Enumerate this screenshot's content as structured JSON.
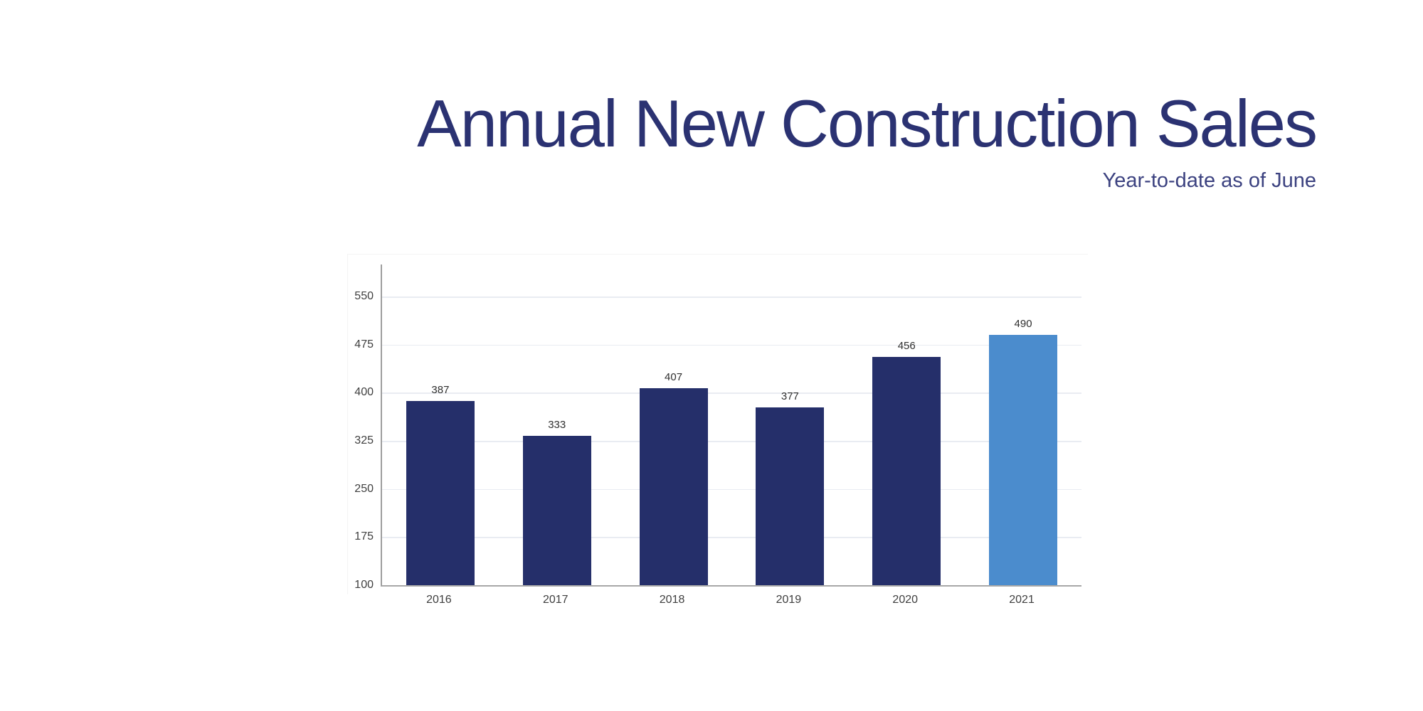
{
  "header": {
    "title": "Annual New Construction Sales",
    "subtitle": "Year-to-date as of June",
    "title_color": "#2b3272",
    "subtitle_color": "#3c4280"
  },
  "chart_data": {
    "type": "bar",
    "title": "Annual New Construction Sales",
    "subtitle": "Year-to-date as of June",
    "categories": [
      "2016",
      "2017",
      "2018",
      "2019",
      "2020",
      "2021"
    ],
    "values": [
      387,
      333,
      407,
      377,
      456,
      490
    ],
    "highlight_index": 5,
    "yticks": [
      550,
      475,
      400,
      325,
      250,
      175,
      100
    ],
    "ylim": [
      100,
      600
    ],
    "xlabel": "",
    "ylabel": "",
    "grid": true,
    "legend_position": "none",
    "colors": {
      "bar": "#252f6a",
      "highlight": "#4b8ccd",
      "gridline": "#e9ecf2",
      "axis": "#9e9e9e",
      "tick_label": "#3f3f3f",
      "value_label": "#2f2f2f"
    }
  }
}
